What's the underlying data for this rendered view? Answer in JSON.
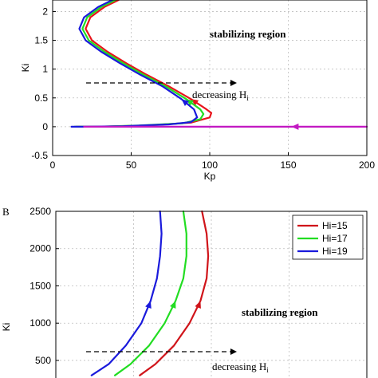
{
  "chart_data": [
    {
      "type": "line",
      "panel_label": "",
      "xlabel": "Kp",
      "ylabel": "Ki",
      "xlim": [
        0,
        200
      ],
      "ylim": [
        -0.5,
        2.2
      ],
      "xticks": [
        0,
        50,
        100,
        150,
        200
      ],
      "xtick_labels": [
        "0",
        "50",
        "100",
        "150",
        "200"
      ],
      "yticks": [
        -0.5,
        0,
        0.5,
        1,
        1.5,
        2
      ],
      "ytick_labels": [
        "-0.5",
        "0",
        "0.5",
        "1",
        "1.5",
        "2"
      ],
      "grid": true,
      "annotations": {
        "region": "stabilizing region",
        "arrow_text": "decreasing H",
        "arrow_sub": "i"
      },
      "series": [
        {
          "name": "",
          "color": "#e8141b",
          "points": [
            [
              42,
              2.2
            ],
            [
              33,
              2.08
            ],
            [
              24,
              1.9
            ],
            [
              21,
              1.7
            ],
            [
              25,
              1.5
            ],
            [
              35,
              1.3
            ],
            [
              47,
              1.1
            ],
            [
              60,
              0.9
            ],
            [
              74,
              0.7
            ],
            [
              88,
              0.48
            ],
            [
              98,
              0.3
            ],
            [
              101,
              0.24
            ],
            [
              100,
              0.16
            ],
            [
              88,
              0.07
            ],
            [
              60,
              0.02
            ],
            [
              30,
              0.0
            ],
            [
              15,
              0.0
            ]
          ]
        },
        {
          "name": "",
          "color": "#22dd22",
          "points": [
            [
              40,
              2.2
            ],
            [
              31,
              2.08
            ],
            [
              22,
              1.9
            ],
            [
              19,
              1.7
            ],
            [
              23,
              1.5
            ],
            [
              33,
              1.3
            ],
            [
              45,
              1.1
            ],
            [
              58,
              0.9
            ],
            [
              72,
              0.7
            ],
            [
              85,
              0.48
            ],
            [
              94,
              0.3
            ],
            [
              96,
              0.22
            ],
            [
              94,
              0.13
            ],
            [
              83,
              0.06
            ],
            [
              55,
              0.02
            ],
            [
              28,
              0.0
            ],
            [
              14,
              0.0
            ]
          ]
        },
        {
          "name": "",
          "color": "#1a1adc",
          "points": [
            [
              38,
              2.2
            ],
            [
              29,
              2.08
            ],
            [
              20,
              1.9
            ],
            [
              17,
              1.7
            ],
            [
              21,
              1.5
            ],
            [
              31,
              1.3
            ],
            [
              43,
              1.1
            ],
            [
              56,
              0.9
            ],
            [
              70,
              0.7
            ],
            [
              82,
              0.48
            ],
            [
              90,
              0.3
            ],
            [
              92,
              0.16
            ],
            [
              88,
              0.08
            ],
            [
              74,
              0.04
            ],
            [
              45,
              0.01
            ],
            [
              22,
              0.0
            ],
            [
              12,
              0.0
            ]
          ]
        },
        {
          "name": "",
          "color": "#c218c2",
          "points": [
            [
              200,
              0.0
            ],
            [
              150,
              0.0
            ],
            [
              100,
              0.0
            ],
            [
              50,
              0.0
            ],
            [
              20,
              0.0
            ]
          ]
        }
      ]
    },
    {
      "type": "line",
      "panel_label": "B",
      "xlabel": "",
      "ylabel": "Ki",
      "xlim": [
        0,
        200
      ],
      "ylim": [
        200,
        2500
      ],
      "yticks": [
        500,
        1000,
        1500,
        2000,
        2500
      ],
      "ytick_labels": [
        "500",
        "1000",
        "1500",
        "2000",
        "2500"
      ],
      "grid": true,
      "legend_position": "top-right",
      "annotations": {
        "region": "stabilizing region",
        "arrow_text": "decreasing H",
        "arrow_sub": "i"
      },
      "series": [
        {
          "name": "Hi=15",
          "color": "#d0141a",
          "points": [
            [
              94,
              2500
            ],
            [
              97,
              2200
            ],
            [
              98,
              1900
            ],
            [
              97,
              1600
            ],
            [
              93,
              1300
            ],
            [
              86,
              1000
            ],
            [
              76,
              700
            ],
            [
              64,
              450
            ],
            [
              54,
              300
            ]
          ]
        },
        {
          "name": "Hi=17",
          "color": "#22dd22",
          "points": [
            [
              82,
              2500
            ],
            [
              84,
              2200
            ],
            [
              84,
              1900
            ],
            [
              82,
              1600
            ],
            [
              77,
              1300
            ],
            [
              70,
              1000
            ],
            [
              60,
              700
            ],
            [
              48,
              450
            ],
            [
              38,
              300
            ]
          ]
        },
        {
          "name": "Hi=19",
          "color": "#1a1adc",
          "points": [
            [
              67,
              2500
            ],
            [
              68,
              2200
            ],
            [
              67,
              1900
            ],
            [
              65,
              1600
            ],
            [
              61,
              1300
            ],
            [
              55,
              1000
            ],
            [
              45,
              700
            ],
            [
              34,
              450
            ],
            [
              23,
              300
            ]
          ]
        }
      ]
    }
  ]
}
